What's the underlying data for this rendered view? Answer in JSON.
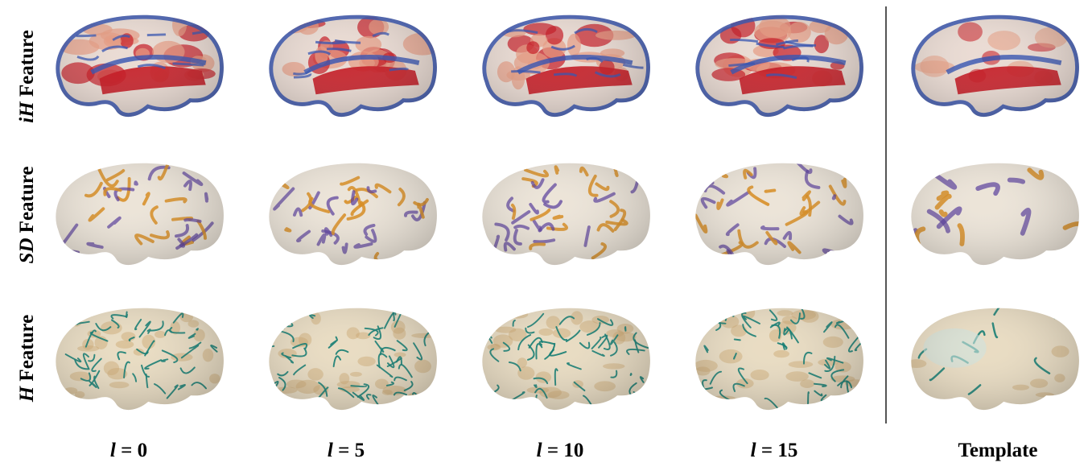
{
  "rows": [
    {
      "key": "ih",
      "label_italic": "iH",
      "label_text": " Feature"
    },
    {
      "key": "sd",
      "label_italic": "SD",
      "label_text": " Feature"
    },
    {
      "key": "h",
      "label_italic": "H",
      "label_text": " Feature"
    }
  ],
  "columns": [
    {
      "key": "l0",
      "label_italic": "l",
      "label_text": " = 0"
    },
    {
      "key": "l5",
      "label_italic": "l",
      "label_text": " = 5"
    },
    {
      "key": "l10",
      "label_italic": "l",
      "label_text": " = 10"
    },
    {
      "key": "l15",
      "label_italic": "l",
      "label_text": " = 15"
    },
    {
      "key": "template",
      "label_italic": "",
      "label_text": "Template"
    }
  ],
  "colors": {
    "ih_base": "#eadbd3",
    "ih_hot": "#c4141e",
    "ih_cool": "#2f4fb0",
    "ih_warm": "#e59a80",
    "sd_base": "#ece4d8",
    "sd_orange": "#d78a1c",
    "sd_purple": "#54379a",
    "h_base": "#e9dcc2",
    "h_teal": "#0f7a70",
    "h_tan": "#c9a46c"
  },
  "icons": {
    "brain": "brain-surface-icon"
  }
}
